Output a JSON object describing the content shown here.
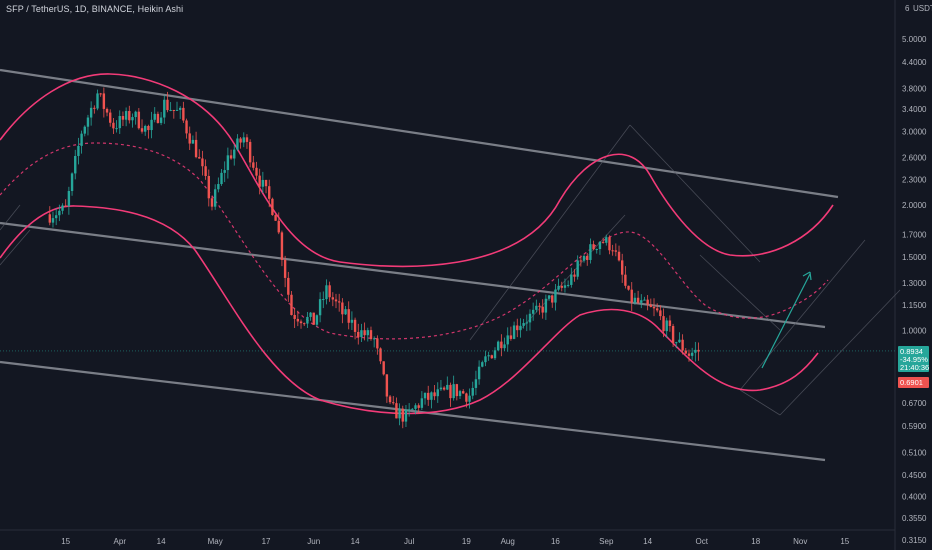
{
  "header": {
    "title": "SFP / TetherUS, 1D, BINANCE, Heikin Ashi"
  },
  "price_axis": {
    "currency": "USDT",
    "top_label": "6",
    "ticks": [
      "5.0000",
      "4.4000",
      "3.8000",
      "3.4000",
      "3.0000",
      "2.6000",
      "2.3000",
      "2.0000",
      "1.7000",
      "1.5000",
      "1.3000",
      "1.1500",
      "1.0000",
      "0.6700",
      "0.5900",
      "0.5100",
      "0.4500",
      "0.4000",
      "0.3550",
      "0.3150"
    ],
    "current_price": "0.8934",
    "change_pct": "-34.95%",
    "countdown": "21:40:36",
    "secondary_price": "0.6901"
  },
  "time_axis": {
    "ticks": [
      "15",
      "Apr",
      "14",
      "May",
      "17",
      "Jun",
      "14",
      "Jul",
      "19",
      "Aug",
      "16",
      "Sep",
      "14",
      "Oct",
      "18",
      "Nov",
      "15"
    ]
  },
  "colors": {
    "background": "#131722",
    "up": "#26a69a",
    "down": "#ef5350",
    "envelope": "#f23b78",
    "channel": "#9598a1",
    "arrow": "#26a69a",
    "price_badge": "#26a69a",
    "secondary_badge": "#ef5350",
    "text": "#b2b5be"
  },
  "chart_data": {
    "type": "candlestick",
    "log_scale": true,
    "y_range": [
      0.3,
      6
    ],
    "x_range": [
      "2021-03-08",
      "2021-11-20"
    ],
    "series": [
      {
        "values": [
          [
            "2021-03-10",
            1.9
          ],
          [
            "2021-03-15",
            1.95
          ],
          [
            "2021-03-20",
            3.0
          ],
          [
            "2021-03-25",
            3.7
          ],
          [
            "2021-03-30",
            3.1
          ],
          [
            "2021-04-05",
            3.3
          ],
          [
            "2021-04-10",
            3.0
          ],
          [
            "2021-04-15",
            3.5
          ],
          [
            "2021-04-20",
            3.3
          ],
          [
            "2021-04-25",
            2.7
          ],
          [
            "2021-04-30",
            2.0
          ],
          [
            "2021-05-05",
            2.6
          ],
          [
            "2021-05-10",
            2.9
          ],
          [
            "2021-05-15",
            2.3
          ],
          [
            "2021-05-20",
            1.9
          ],
          [
            "2021-05-25",
            1.1
          ],
          [
            "2021-06-01",
            1.05
          ],
          [
            "2021-06-05",
            1.25
          ],
          [
            "2021-06-10",
            1.1
          ],
          [
            "2021-06-15",
            1.0
          ],
          [
            "2021-06-20",
            0.95
          ],
          [
            "2021-06-25",
            0.65
          ],
          [
            "2021-06-30",
            0.62
          ],
          [
            "2021-07-05",
            0.68
          ],
          [
            "2021-07-10",
            0.7
          ],
          [
            "2021-07-15",
            0.72
          ],
          [
            "2021-07-20",
            0.7
          ],
          [
            "2021-07-25",
            0.85
          ],
          [
            "2021-07-30",
            0.95
          ],
          [
            "2021-08-05",
            1.05
          ],
          [
            "2021-08-10",
            1.1
          ],
          [
            "2021-08-15",
            1.2
          ],
          [
            "2021-08-20",
            1.3
          ],
          [
            "2021-08-25",
            1.5
          ],
          [
            "2021-08-30",
            1.65
          ],
          [
            "2021-09-03",
            1.6
          ],
          [
            "2021-09-08",
            1.2
          ],
          [
            "2021-09-12",
            1.15
          ],
          [
            "2021-09-17",
            1.1
          ],
          [
            "2021-09-22",
            0.96
          ],
          [
            "2021-09-27",
            0.88
          ],
          [
            "2021-09-30",
            0.8934
          ]
        ]
      }
    ]
  }
}
